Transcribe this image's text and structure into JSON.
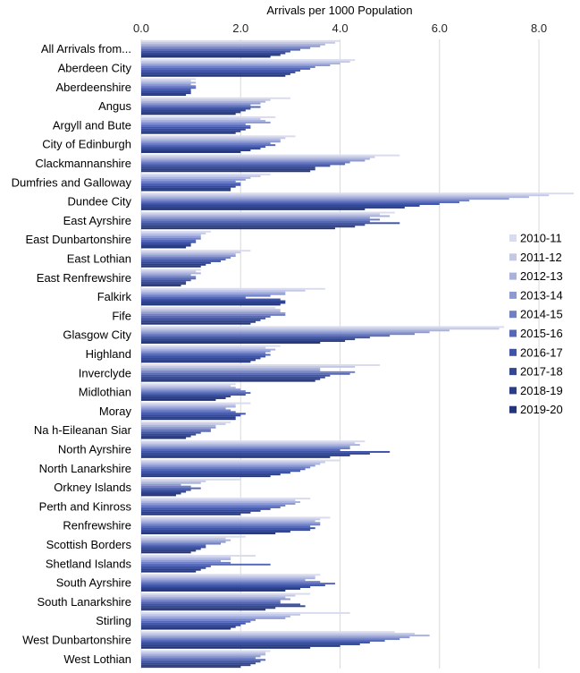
{
  "chart_data": {
    "type": "bar",
    "orientation": "horizontal",
    "title": "",
    "xlabel": "Arrivals per 1000 Population",
    "ylabel": "",
    "xlim": [
      0,
      8.7
    ],
    "x_ticks": [
      "0.0",
      "2.0",
      "4.0",
      "6.0",
      "8.0"
    ],
    "x_tick_values": [
      0,
      2,
      4,
      6,
      8
    ],
    "x_axis_position": "top",
    "grid": "vertical",
    "legend_position": "right",
    "categories": [
      "All Arrivals from...",
      "Aberdeen City",
      "Aberdeenshire",
      "Angus",
      "Argyll and Bute",
      "City of Edinburgh",
      "Clackmannanshire",
      "Dumfries and Galloway",
      "Dundee City",
      "East Ayrshire",
      "East Dunbartonshire",
      "East Lothian",
      "East Renfrewshire",
      "Falkirk",
      "Fife",
      "Glasgow City",
      "Highland",
      "Inverclyde",
      "Midlothian",
      "Moray",
      "Na h-Eileanan Siar",
      "North Ayrshire",
      "North Lanarkshire",
      "Orkney Islands",
      "Perth and Kinross",
      "Renfrewshire",
      "Scottish Borders",
      "Shetland Islands",
      "South Ayrshire",
      "South Lanarkshire",
      "Stirling",
      "West Dunbartonshire",
      "West Lothian"
    ],
    "series": [
      {
        "name": "2010-11",
        "color": "#d9dbee",
        "values": [
          4.0,
          4.3,
          1.1,
          3.0,
          2.7,
          3.1,
          5.2,
          2.6,
          8.7,
          5.1,
          1.4,
          2.2,
          1.2,
          3.7,
          2.7,
          7.3,
          2.8,
          4.8,
          1.9,
          2.2,
          1.8,
          4.5,
          4.0,
          2.0,
          3.4,
          3.8,
          2.1,
          2.3,
          3.6,
          3.4,
          4.2,
          5.1,
          2.6
        ]
      },
      {
        "name": "2011-12",
        "color": "#c3c8e6",
        "values": [
          3.9,
          4.2,
          1.0,
          2.6,
          2.4,
          2.9,
          4.7,
          2.4,
          8.2,
          4.8,
          1.3,
          2.0,
          1.1,
          3.3,
          2.8,
          7.2,
          2.5,
          4.3,
          1.8,
          1.9,
          1.7,
          4.3,
          3.7,
          1.3,
          3.1,
          3.6,
          1.7,
          1.8,
          3.5,
          3.1,
          3.2,
          5.5,
          2.5
        ]
      },
      {
        "name": "2012-13",
        "color": "#a9b2dc",
        "values": [
          3.7,
          4.0,
          1.1,
          2.5,
          2.5,
          2.8,
          4.6,
          2.2,
          7.8,
          5.0,
          1.2,
          1.9,
          1.2,
          2.9,
          2.8,
          6.2,
          2.7,
          3.6,
          1.9,
          1.9,
          1.5,
          4.4,
          3.6,
          1.2,
          3.2,
          3.5,
          1.8,
          1.8,
          3.5,
          2.9,
          3.0,
          5.8,
          2.5
        ]
      },
      {
        "name": "2013-14",
        "color": "#8d99d1",
        "values": [
          3.6,
          3.8,
          1.0,
          2.4,
          2.6,
          2.8,
          4.5,
          2.1,
          7.4,
          4.6,
          1.2,
          1.9,
          1.0,
          2.9,
          2.9,
          5.8,
          2.6,
          3.6,
          2.0,
          1.7,
          1.5,
          4.2,
          3.5,
          0.8,
          3.1,
          3.6,
          1.7,
          1.6,
          3.3,
          3.0,
          2.9,
          5.4,
          2.4
        ]
      },
      {
        "name": "2014-15",
        "color": "#6f7fc6",
        "values": [
          3.4,
          3.5,
          1.1,
          2.2,
          2.1,
          2.6,
          4.2,
          1.9,
          6.6,
          4.8,
          1.2,
          1.8,
          1.1,
          2.6,
          2.9,
          5.5,
          2.5,
          4.3,
          2.1,
          1.8,
          1.4,
          4.2,
          3.4,
          1.0,
          2.9,
          3.6,
          1.6,
          1.8,
          3.6,
          2.8,
          2.3,
          5.2,
          2.3
        ]
      },
      {
        "name": "2015-16",
        "color": "#5467b8",
        "values": [
          3.2,
          3.4,
          1.1,
          2.4,
          2.2,
          2.7,
          4.1,
          2.0,
          6.4,
          4.6,
          1.1,
          1.7,
          1.1,
          2.1,
          2.6,
          5.0,
          2.6,
          4.2,
          2.2,
          1.9,
          1.4,
          4.0,
          3.3,
          1.2,
          2.8,
          3.4,
          1.3,
          2.6,
          3.9,
          2.8,
          2.2,
          4.9,
          2.5
        ]
      },
      {
        "name": "2016-17",
        "color": "#3f54a6",
        "values": [
          3.0,
          3.2,
          1.0,
          2.2,
          2.2,
          2.5,
          3.8,
          2.0,
          6.0,
          5.2,
          1.1,
          1.6,
          1.0,
          2.8,
          2.5,
          4.6,
          2.5,
          3.8,
          2.1,
          2.1,
          1.2,
          5.0,
          3.2,
          1.0,
          2.6,
          3.5,
          1.3,
          1.4,
          3.7,
          3.2,
          2.1,
          4.6,
          2.4
        ]
      },
      {
        "name": "2017-18",
        "color": "#324796",
        "values": [
          2.9,
          3.1,
          1.0,
          2.1,
          2.1,
          2.4,
          3.5,
          1.9,
          5.6,
          4.5,
          1.0,
          1.4,
          0.9,
          2.9,
          2.4,
          4.3,
          2.4,
          3.7,
          1.8,
          2.0,
          1.1,
          4.6,
          3.0,
          0.9,
          2.4,
          3.4,
          1.2,
          1.3,
          3.4,
          3.3,
          2.0,
          4.4,
          2.3
        ]
      },
      {
        "name": "2018-19",
        "color": "#2a3d86",
        "values": [
          2.8,
          3.0,
          1.0,
          2.0,
          2.0,
          2.2,
          3.5,
          1.8,
          5.3,
          4.3,
          1.0,
          1.3,
          0.9,
          2.9,
          2.3,
          4.1,
          2.3,
          3.6,
          1.7,
          1.9,
          1.0,
          4.2,
          2.8,
          0.8,
          2.2,
          3.0,
          1.1,
          1.2,
          3.2,
          2.7,
          1.9,
          4.0,
          2.2
        ]
      },
      {
        "name": "2019-20",
        "color": "#23357a",
        "values": [
          2.6,
          2.9,
          0.9,
          1.9,
          1.9,
          2.0,
          3.4,
          1.8,
          4.5,
          3.9,
          0.9,
          1.2,
          0.8,
          2.8,
          2.2,
          3.6,
          2.2,
          3.5,
          1.5,
          1.9,
          0.9,
          3.8,
          2.6,
          0.7,
          2.0,
          2.7,
          1.0,
          1.1,
          2.9,
          2.5,
          1.8,
          3.4,
          2.0
        ]
      }
    ]
  }
}
